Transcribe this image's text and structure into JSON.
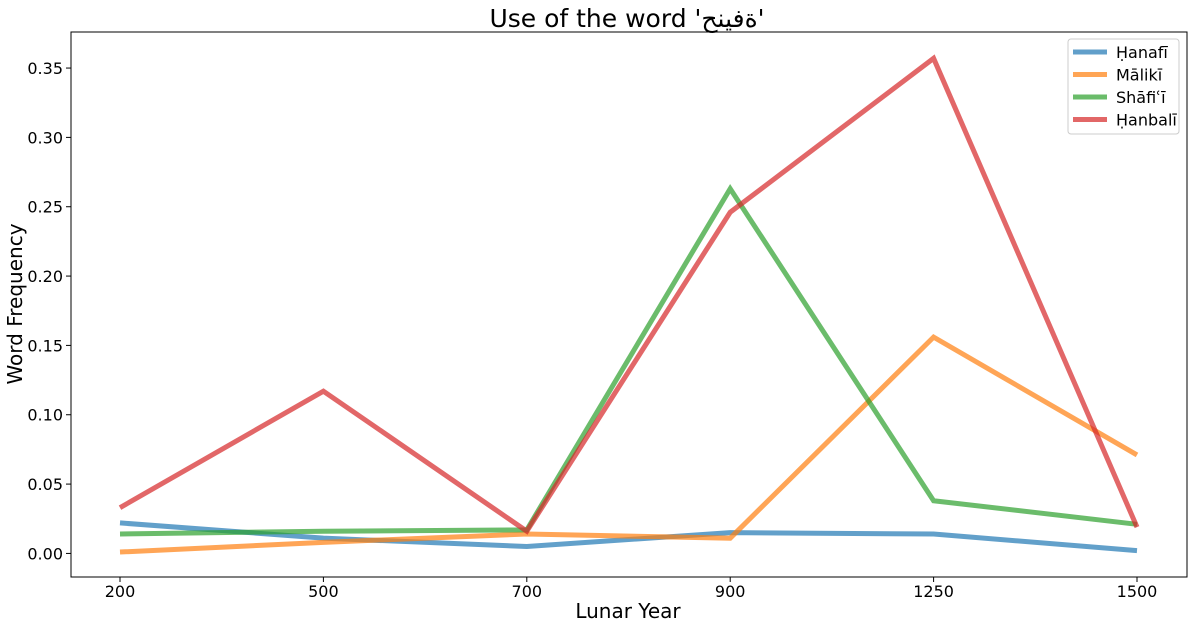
{
  "chart_data": {
    "type": "line",
    "title": "Use of the word 'ةفينح'",
    "xlabel": "Lunar Year",
    "ylabel": "Word Frequency",
    "categories": [
      "200",
      "500",
      "700",
      "900",
      "1250",
      "1500"
    ],
    "ylim": [
      -0.017,
      0.376
    ],
    "yticks": [
      "0.00",
      "0.05",
      "0.10",
      "0.15",
      "0.20",
      "0.25",
      "0.30",
      "0.35"
    ],
    "grid": false,
    "legend_position": "top-right",
    "series": [
      {
        "name": "Ḥanafī",
        "color": "#1f77b4",
        "values": [
          0.022,
          0.011,
          0.005,
          0.015,
          0.014,
          0.002
        ]
      },
      {
        "name": "Mālikī",
        "color": "#ff7f0e",
        "values": [
          0.001,
          0.008,
          0.014,
          0.011,
          0.156,
          0.071
        ]
      },
      {
        "name": "Shāfiʿī",
        "color": "#2ca02c",
        "values": [
          0.014,
          0.016,
          0.017,
          0.263,
          0.038,
          0.021
        ]
      },
      {
        "name": "Ḥanbalī",
        "color": "#d62728",
        "values": [
          0.033,
          0.117,
          0.016,
          0.246,
          0.357,
          0.019
        ]
      }
    ]
  }
}
